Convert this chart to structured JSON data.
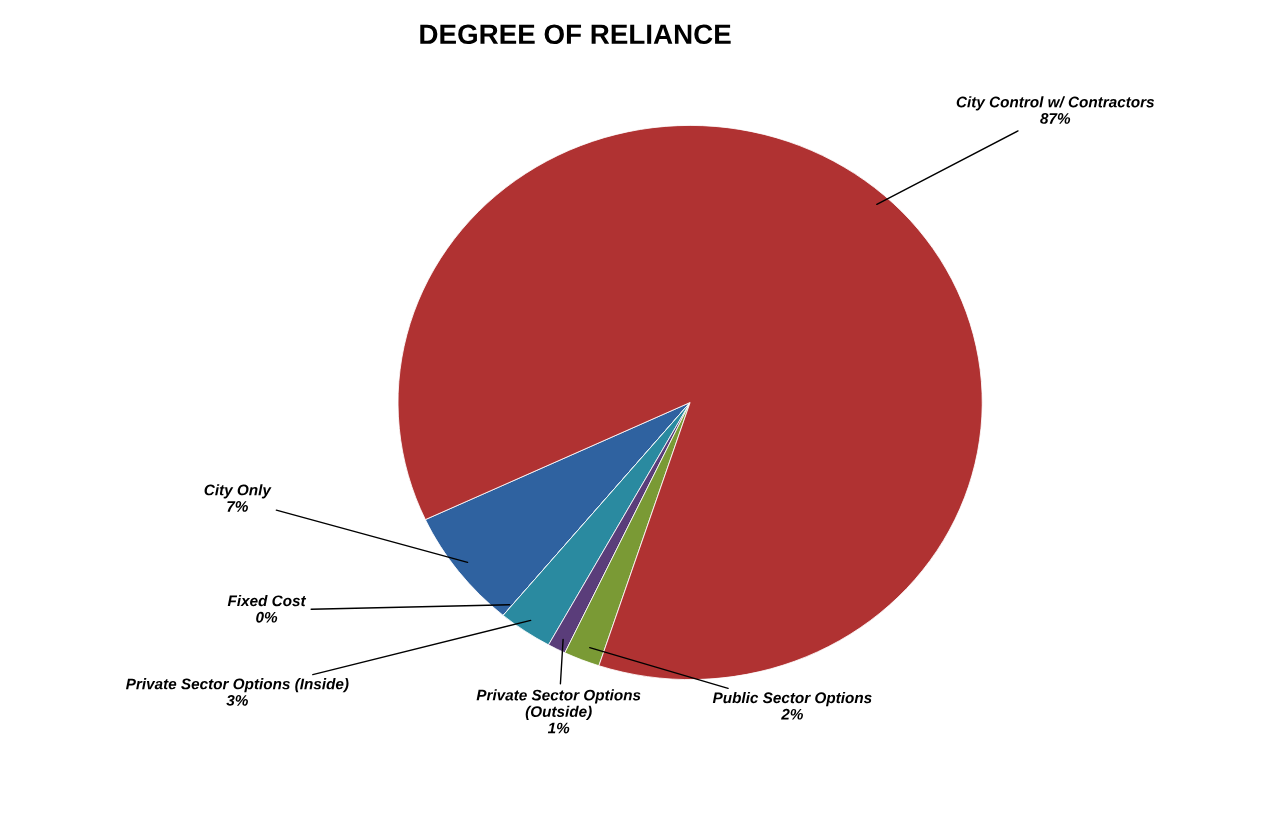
{
  "chart_data": {
    "type": "pie",
    "title": "DEGREE OF RELIANCE",
    "categories": [
      "City Only",
      "Fixed Cost",
      "Private Sector Options (Inside)",
      "Private Sector Options\n(Outside)",
      "Public Sector Options",
      "City Control w/ Contractors"
    ],
    "values": [
      7,
      0,
      3,
      1,
      2,
      87
    ],
    "colors": [
      "#2f62a0",
      "#d07020",
      "#2a8aa0",
      "#5a3d7a",
      "#7a9a35",
      "#b03232"
    ],
    "value_labels": [
      "7%",
      "0%",
      "3%",
      "1%",
      "2%",
      "87%"
    ]
  }
}
